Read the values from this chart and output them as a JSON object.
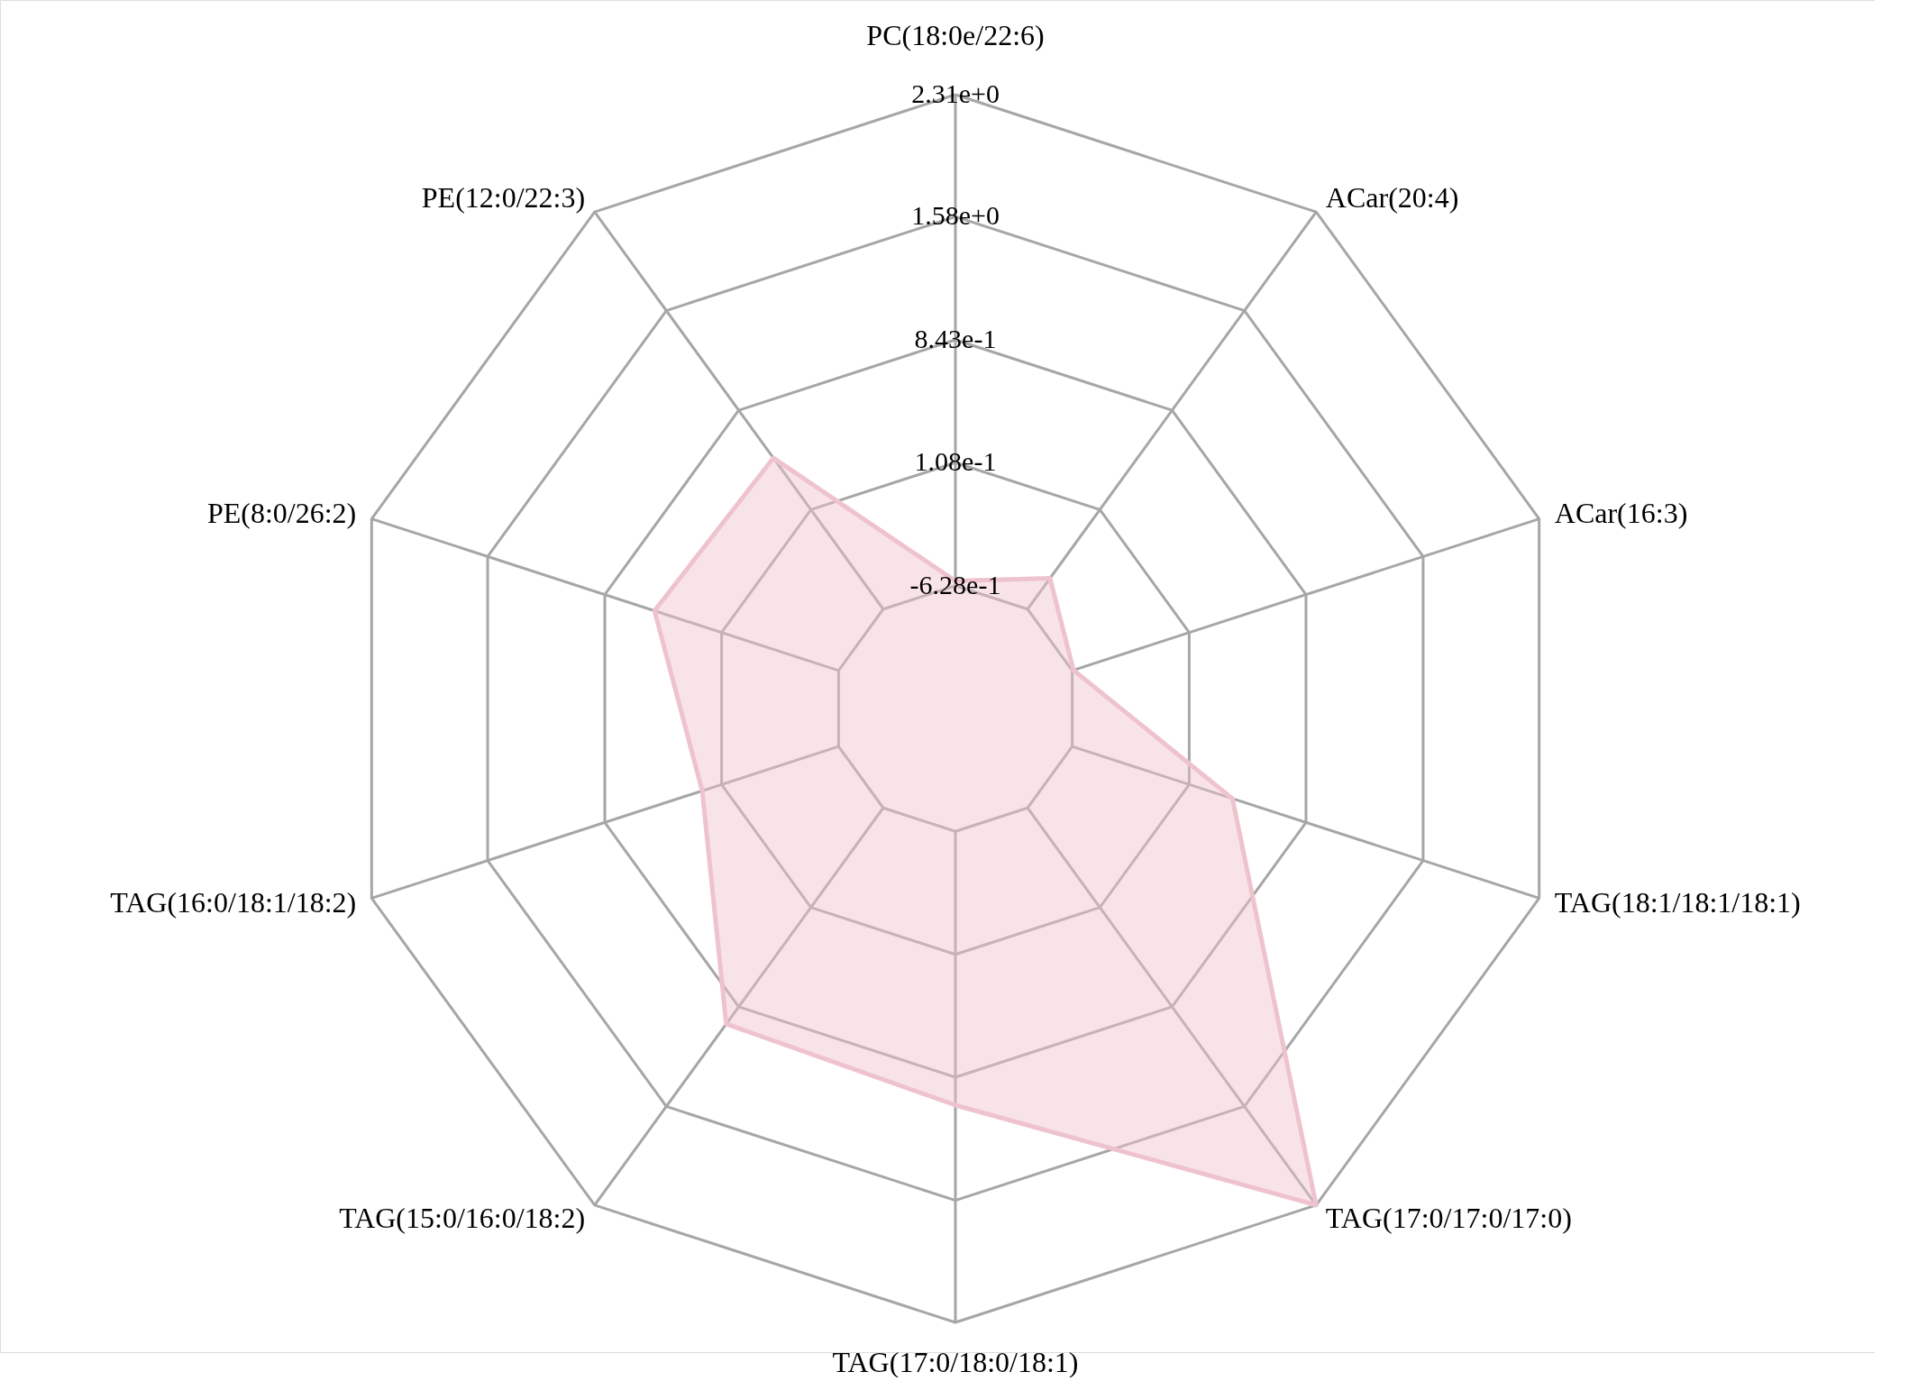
{
  "chart_data": {
    "type": "radar",
    "categories": [
      "PC(18:0e/22:6)",
      "ACar(20:4)",
      "ACar(16:3)",
      "TAG(18:1/18:1/18:1)",
      "TAG(17:0/17:0/17:0)",
      "TAG(17:0/18:0/18:1)",
      "TAG(15:0/16:0/18:2)",
      "TAG(16:0/18:1/18:2)",
      "PE(8:0/26:2)",
      "PE(12:0/22:3)"
    ],
    "series": [
      {
        "color": "#efc3cd",
        "values": [
          -0.6,
          -0.4,
          -0.62,
          0.38,
          2.31,
          1.01,
          0.97,
          0.23,
          0.53,
          0.49
        ]
      }
    ],
    "ylim": [
      -1.363,
      2.31
    ],
    "yticks": [
      {
        "value": -0.628,
        "label": "-6.28e-1"
      },
      {
        "value": 0.108,
        "label": "1.08e-1"
      },
      {
        "value": 0.843,
        "label": "8.43e-1"
      },
      {
        "value": 1.58,
        "label": "1.58e+0"
      },
      {
        "value": 2.31,
        "label": "2.31e+0"
      }
    ],
    "grid": true
  }
}
